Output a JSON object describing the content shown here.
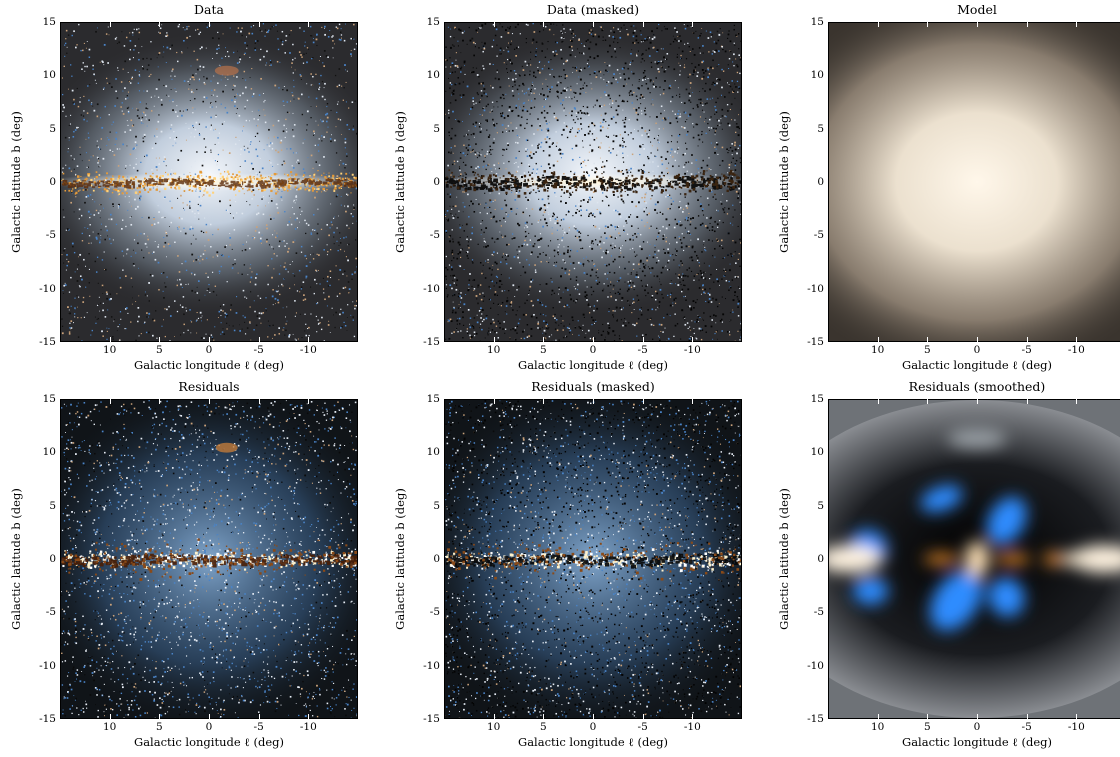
{
  "figure": {
    "x_axis_label": "Galactic longitude ℓ (deg)",
    "y_axis_label": "Galactic latitude b (deg)",
    "x_ticks": [
      "10",
      "5",
      "0",
      "-5",
      "-10"
    ],
    "y_ticks": [
      "15",
      "10",
      "5",
      "0",
      "-5",
      "-10",
      "-15"
    ],
    "panels": [
      {
        "id": "data",
        "title": "Data",
        "style": "data"
      },
      {
        "id": "data-masked",
        "title": "Data (masked)",
        "style": "masked"
      },
      {
        "id": "model",
        "title": "Model",
        "style": "model"
      },
      {
        "id": "residuals",
        "title": "Residuals",
        "style": "residuals"
      },
      {
        "id": "residuals-masked",
        "title": "Residuals (masked)",
        "style": "residuals-masked"
      },
      {
        "id": "residuals-smoothed",
        "title": "Residuals (smoothed)",
        "style": "smoothed"
      }
    ],
    "colors": {
      "bulge_white": "#f4f7fb",
      "star_blue": "#4a84c8",
      "dust_orange": "#e49a3a",
      "dark_bg": "#1a1a1c",
      "model_glow": "#fff7ea",
      "smoothed_blue": "#2f8cff",
      "smoothed_orange": "#ff9a2e"
    }
  }
}
